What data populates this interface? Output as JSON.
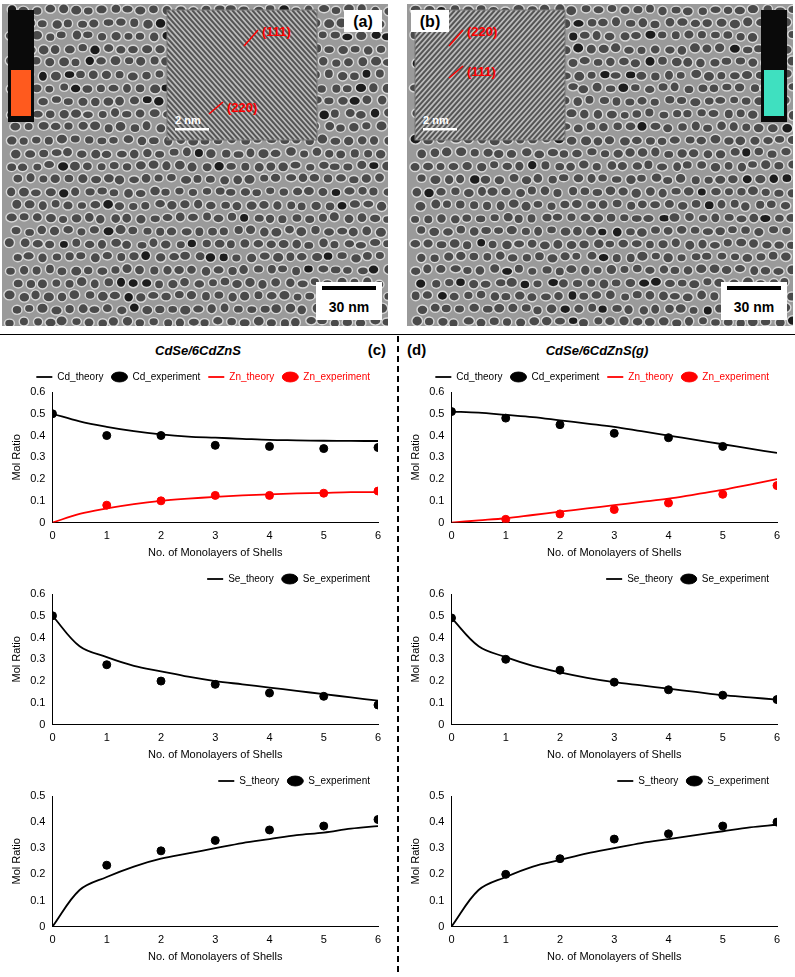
{
  "images": [
    {
      "letter": "(a)",
      "inset_labels": [
        "(111)",
        "(220)"
      ],
      "inset_scale_bar": "2 nm",
      "scale_bar": "30 nm"
    },
    {
      "letter": "(b)",
      "inset_labels": [
        "(220)",
        "(111)"
      ],
      "inset_scale_bar": "2 nm",
      "scale_bar": "30 nm"
    }
  ],
  "chart_data": [
    {
      "type": "line",
      "panel": "(c)",
      "title": "CdSe/6CdZnS",
      "x_label": "No. of Monolayers of Shells",
      "y_label": "Mol Ratio",
      "xlim": [
        0,
        6
      ],
      "xticks": [
        0,
        1,
        2,
        3,
        4,
        5,
        6
      ],
      "ylim": [
        0,
        0.6
      ],
      "yticks": [
        0,
        0.1,
        0.2,
        0.3,
        0.4,
        0.5,
        0.6
      ],
      "grid": false,
      "legend": "top",
      "series": [
        {
          "name": "Cd_theory",
          "type": "line",
          "line_style": "solid",
          "color": "#000000",
          "x": [
            0,
            0.5,
            1,
            1.5,
            2,
            2.5,
            3,
            3.5,
            4,
            4.5,
            5,
            5.5,
            6
          ],
          "values": [
            0.5,
            0.465,
            0.44,
            0.42,
            0.405,
            0.395,
            0.39,
            0.385,
            0.38,
            0.378,
            0.376,
            0.375,
            0.375
          ]
        },
        {
          "name": "Cd_experiment",
          "type": "scatter",
          "marker": "circle",
          "color": "#000000",
          "x": [
            0,
            1,
            2,
            3,
            4,
            5,
            6
          ],
          "values": [
            0.5,
            0.4,
            0.4,
            0.355,
            0.35,
            0.34,
            0.345
          ]
        },
        {
          "name": "Zn_theory",
          "type": "line",
          "line_style": "solid",
          "color": "#ff0000",
          "x": [
            0,
            0.5,
            1,
            1.5,
            2,
            2.5,
            3,
            3.5,
            4,
            4.5,
            5,
            5.5,
            6
          ],
          "values": [
            0,
            0.04,
            0.065,
            0.085,
            0.1,
            0.11,
            0.118,
            0.125,
            0.13,
            0.134,
            0.137,
            0.14,
            0.14
          ]
        },
        {
          "name": "Zn_experiment",
          "type": "scatter",
          "marker": "circle",
          "color": "#ff0000",
          "x": [
            1,
            2,
            3,
            4,
            5,
            6
          ],
          "values": [
            0.08,
            0.1,
            0.125,
            0.125,
            0.135,
            0.145
          ]
        }
      ]
    },
    {
      "type": "line",
      "x_label": "No. of Monolayers of Shells",
      "y_label": "Mol Ratio",
      "xlim": [
        0,
        6
      ],
      "xticks": [
        0,
        1,
        2,
        3,
        4,
        5,
        6
      ],
      "ylim": [
        0,
        0.6
      ],
      "yticks": [
        0,
        0.1,
        0.2,
        0.3,
        0.4,
        0.5,
        0.6
      ],
      "grid": false,
      "legend": "top",
      "series": [
        {
          "name": "Se_theory",
          "type": "line",
          "line_style": "solid",
          "color": "#000000",
          "x": [
            0,
            0.5,
            1,
            1.5,
            2,
            2.5,
            3,
            3.5,
            4,
            4.5,
            5,
            5.5,
            6
          ],
          "values": [
            0.5,
            0.36,
            0.31,
            0.27,
            0.245,
            0.22,
            0.2,
            0.185,
            0.17,
            0.155,
            0.14,
            0.125,
            0.11
          ]
        },
        {
          "name": "Se_experiment",
          "type": "scatter",
          "marker": "circle",
          "color": "#000000",
          "x": [
            0,
            1,
            2,
            3,
            4,
            5,
            6
          ],
          "values": [
            0.5,
            0.275,
            0.2,
            0.185,
            0.145,
            0.13,
            0.09
          ]
        }
      ]
    },
    {
      "type": "line",
      "x_label": "No. of Monolayers of Shells",
      "y_label": "Mol Ratio",
      "xlim": [
        0,
        6
      ],
      "xticks": [
        0,
        1,
        2,
        3,
        4,
        5,
        6
      ],
      "ylim": [
        0,
        0.5
      ],
      "yticks": [
        0,
        0.1,
        0.2,
        0.3,
        0.4,
        0.5
      ],
      "grid": false,
      "legend": "top",
      "series": [
        {
          "name": "S_theory",
          "type": "line",
          "line_style": "solid",
          "color": "#000000",
          "x": [
            0,
            0.5,
            1,
            1.5,
            2,
            2.5,
            3,
            3.5,
            4,
            4.5,
            5,
            5.5,
            6
          ],
          "values": [
            0,
            0.14,
            0.19,
            0.23,
            0.26,
            0.28,
            0.3,
            0.32,
            0.335,
            0.35,
            0.36,
            0.375,
            0.385
          ]
        },
        {
          "name": "S_experiment",
          "type": "scatter",
          "marker": "circle",
          "color": "#000000",
          "x": [
            1,
            2,
            3,
            4,
            5,
            6
          ],
          "values": [
            0.235,
            0.29,
            0.33,
            0.37,
            0.385,
            0.41
          ]
        }
      ]
    },
    {
      "type": "line",
      "panel": "(d)",
      "title": "CdSe/6CdZnS(g)",
      "x_label": "No. of Monolayers of Shells",
      "y_label": "Mol Ratio",
      "xlim": [
        0,
        6
      ],
      "xticks": [
        0,
        1,
        2,
        3,
        4,
        5,
        6
      ],
      "ylim": [
        0,
        0.6
      ],
      "yticks": [
        0,
        0.1,
        0.2,
        0.3,
        0.4,
        0.5,
        0.6
      ],
      "grid": false,
      "legend": "top",
      "series": [
        {
          "name": "Cd_theory",
          "type": "line",
          "line_style": "solid",
          "color": "#000000",
          "x": [
            0,
            0.5,
            1,
            1.5,
            2,
            2.5,
            3,
            3.5,
            4,
            4.5,
            5,
            5.5,
            6
          ],
          "values": [
            0.51,
            0.505,
            0.495,
            0.485,
            0.47,
            0.455,
            0.44,
            0.42,
            0.4,
            0.38,
            0.36,
            0.34,
            0.32
          ]
        },
        {
          "name": "Cd_experiment",
          "type": "scatter",
          "marker": "circle",
          "color": "#000000",
          "x": [
            0,
            1,
            2,
            3,
            4,
            5
          ],
          "values": [
            0.51,
            0.48,
            0.45,
            0.41,
            0.39,
            0.35
          ]
        },
        {
          "name": "Zn_theory",
          "type": "line",
          "line_style": "solid",
          "color": "#ff0000",
          "x": [
            0,
            0.5,
            1,
            1.5,
            2,
            2.5,
            3,
            3.5,
            4,
            4.5,
            5,
            5.5,
            6
          ],
          "values": [
            0,
            0.01,
            0.02,
            0.035,
            0.05,
            0.065,
            0.08,
            0.095,
            0.11,
            0.13,
            0.15,
            0.175,
            0.2
          ]
        },
        {
          "name": "Zn_experiment",
          "type": "scatter",
          "marker": "circle",
          "color": "#ff0000",
          "x": [
            1,
            2,
            3,
            4,
            5,
            6
          ],
          "values": [
            0.015,
            0.04,
            0.06,
            0.09,
            0.13,
            0.17
          ]
        }
      ]
    },
    {
      "type": "line",
      "x_label": "No. of Monolayers of Shells",
      "y_label": "Mol Ratio",
      "xlim": [
        0,
        6
      ],
      "xticks": [
        0,
        1,
        2,
        3,
        4,
        5,
        6
      ],
      "ylim": [
        0,
        0.6
      ],
      "yticks": [
        0,
        0.1,
        0.2,
        0.3,
        0.4,
        0.5,
        0.6
      ],
      "grid": false,
      "legend": "top",
      "series": [
        {
          "name": "Se_theory",
          "type": "line",
          "line_style": "solid",
          "color": "#000000",
          "x": [
            0,
            0.5,
            1,
            1.5,
            2,
            2.5,
            3,
            3.5,
            4,
            4.5,
            5,
            5.5,
            6
          ],
          "values": [
            0.49,
            0.36,
            0.31,
            0.27,
            0.24,
            0.215,
            0.195,
            0.18,
            0.165,
            0.15,
            0.135,
            0.125,
            0.115
          ]
        },
        {
          "name": "Se_experiment",
          "type": "scatter",
          "marker": "circle",
          "color": "#000000",
          "x": [
            0,
            1,
            2,
            3,
            4,
            5,
            6
          ],
          "values": [
            0.49,
            0.3,
            0.25,
            0.195,
            0.16,
            0.135,
            0.115
          ]
        }
      ]
    },
    {
      "type": "line",
      "x_label": "No. of Monolayers of Shells",
      "y_label": "Mol Ratio",
      "xlim": [
        0,
        6
      ],
      "xticks": [
        0,
        1,
        2,
        3,
        4,
        5,
        6
      ],
      "ylim": [
        0,
        0.5
      ],
      "yticks": [
        0,
        0.1,
        0.2,
        0.3,
        0.4,
        0.5
      ],
      "grid": false,
      "legend": "top",
      "series": [
        {
          "name": "S_theory",
          "type": "line",
          "line_style": "solid",
          "color": "#000000",
          "x": [
            0,
            0.5,
            1,
            1.5,
            2,
            2.5,
            3,
            3.5,
            4,
            4.5,
            5,
            5.5,
            6
          ],
          "values": [
            0,
            0.14,
            0.19,
            0.23,
            0.255,
            0.28,
            0.3,
            0.32,
            0.335,
            0.35,
            0.365,
            0.38,
            0.39
          ]
        },
        {
          "name": "S_experiment",
          "type": "scatter",
          "marker": "circle",
          "color": "#000000",
          "x": [
            1,
            2,
            3,
            4,
            5,
            6
          ],
          "values": [
            0.2,
            0.26,
            0.335,
            0.355,
            0.385,
            0.4
          ]
        }
      ]
    }
  ]
}
